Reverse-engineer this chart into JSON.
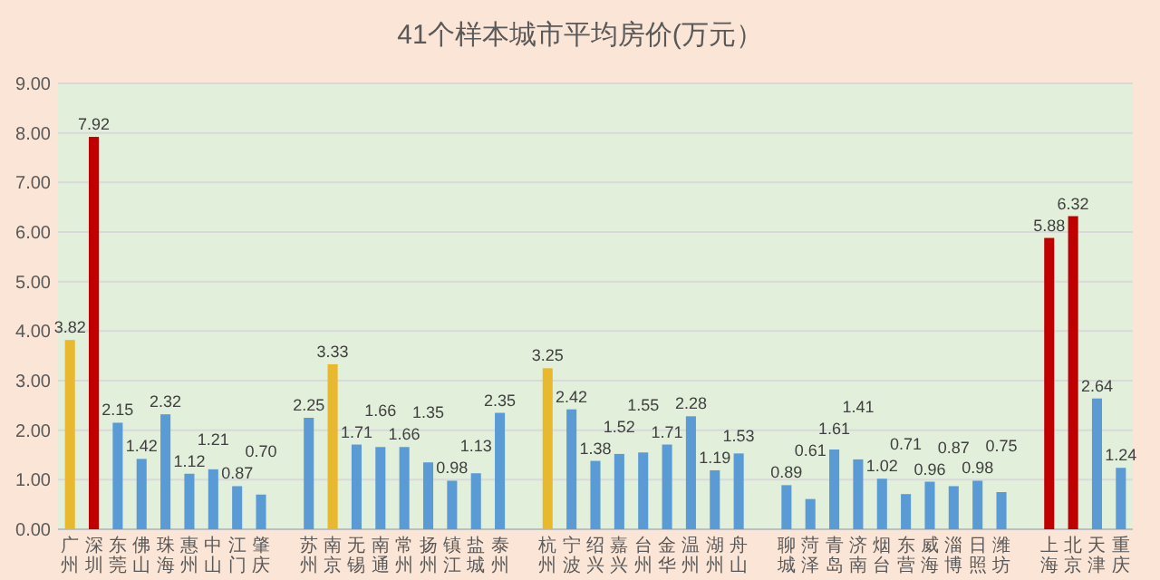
{
  "chart_data": {
    "type": "bar",
    "title": "41个样本城市平均房价(万元）",
    "categories": [
      "广州",
      "深圳",
      "东莞",
      "佛山",
      "珠海",
      "惠州",
      "中山",
      "江门",
      "肇庆",
      null,
      "苏州",
      "南京",
      "无锡",
      "南通",
      "常州",
      "扬州",
      "镇江",
      "盐城",
      "泰州",
      null,
      "杭州",
      "宁波",
      "绍兴",
      "嘉兴",
      "台州",
      "金华",
      "温州",
      "湖州",
      "舟山",
      null,
      "聊城",
      "菏泽",
      "青岛",
      "济南",
      "烟台",
      "东营",
      "威海",
      "淄博",
      "日照",
      "潍坊",
      null,
      "上海",
      "北京",
      "天津",
      "重庆"
    ],
    "values": [
      3.82,
      7.92,
      2.15,
      1.42,
      2.32,
      1.12,
      1.21,
      0.87,
      0.7,
      null,
      2.25,
      3.33,
      1.71,
      1.66,
      1.66,
      1.35,
      0.98,
      1.13,
      2.35,
      null,
      3.25,
      2.42,
      1.38,
      1.52,
      1.55,
      1.71,
      2.28,
      1.19,
      1.53,
      null,
      0.89,
      0.61,
      1.61,
      1.41,
      1.02,
      0.71,
      0.96,
      0.87,
      0.98,
      0.75,
      null,
      5.88,
      6.32,
      2.64,
      1.24
    ],
    "colors": [
      "#e8b82e",
      "#c00000",
      "#5b9bd5",
      "#5b9bd5",
      "#5b9bd5",
      "#5b9bd5",
      "#5b9bd5",
      "#5b9bd5",
      "#5b9bd5",
      null,
      "#5b9bd5",
      "#e8b82e",
      "#5b9bd5",
      "#5b9bd5",
      "#5b9bd5",
      "#5b9bd5",
      "#5b9bd5",
      "#5b9bd5",
      "#5b9bd5",
      null,
      "#e8b82e",
      "#5b9bd5",
      "#5b9bd5",
      "#5b9bd5",
      "#5b9bd5",
      "#5b9bd5",
      "#5b9bd5",
      "#5b9bd5",
      "#5b9bd5",
      null,
      "#5b9bd5",
      "#5b9bd5",
      "#5b9bd5",
      "#5b9bd5",
      "#5b9bd5",
      "#5b9bd5",
      "#5b9bd5",
      "#5b9bd5",
      "#5b9bd5",
      "#5b9bd5",
      null,
      "#c00000",
      "#c00000",
      "#5b9bd5",
      "#5b9bd5"
    ],
    "ylim": [
      0,
      9
    ],
    "yticks": [
      {
        "value": 0,
        "label": "0.00"
      },
      {
        "value": 1,
        "label": "1.00"
      },
      {
        "value": 2,
        "label": "2.00"
      },
      {
        "value": 3,
        "label": "3.00"
      },
      {
        "value": 4,
        "label": "4.00"
      },
      {
        "value": 5,
        "label": "5.00"
      },
      {
        "value": 6,
        "label": "6.00"
      },
      {
        "value": 7,
        "label": "7.00"
      },
      {
        "value": 8,
        "label": "8.00"
      },
      {
        "value": 9,
        "label": "9.00"
      }
    ],
    "value_labels": [
      "3.82",
      "7.92",
      "2.15",
      "1.42",
      "2.32",
      "1.12",
      "1.21",
      "0.87",
      "0.70",
      null,
      "2.25",
      "3.33",
      "1.71",
      "1.66",
      "1.66",
      "1.35",
      "0.98",
      "1.13",
      "2.35",
      null,
      "3.25",
      "2.42",
      "1.38",
      "1.52",
      "1.55",
      "1.71",
      "2.28",
      "1.19",
      "1.53",
      null,
      "0.89",
      "0.61",
      "1.61",
      "1.41",
      "1.02",
      "0.71",
      "0.96",
      "0.87",
      "0.98",
      "0.75",
      null,
      "5.88",
      "6.32",
      "2.64",
      "1.24"
    ],
    "grid": "y"
  }
}
